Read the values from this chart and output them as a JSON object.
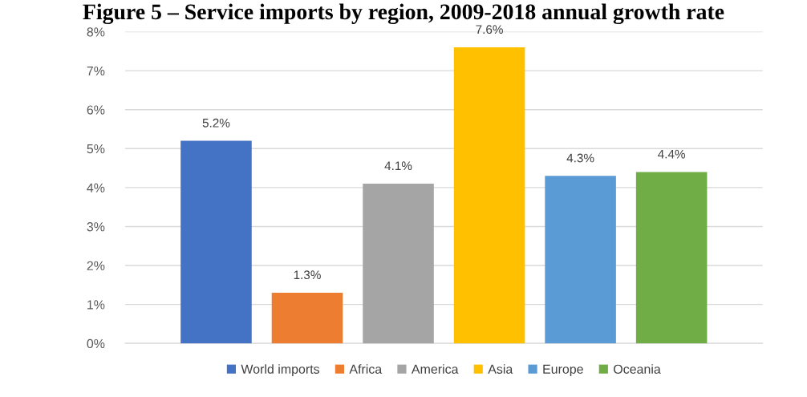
{
  "chart_data": {
    "type": "bar",
    "title": "Figure 5 – Service imports by region, 2009-2018 annual growth rate",
    "categories": [
      null,
      null,
      null,
      null,
      null,
      null
    ],
    "series": [
      {
        "name": "World imports",
        "color": "#4472c4",
        "values": [
          5.2,
          null,
          null,
          null,
          null,
          null
        ],
        "value_labels": [
          "5.2%",
          null,
          null,
          null,
          null,
          null
        ]
      },
      {
        "name": "Africa",
        "color": "#ed7d31",
        "values": [
          null,
          1.3,
          null,
          null,
          null,
          null
        ],
        "value_labels": [
          null,
          "1.3%",
          null,
          null,
          null,
          null
        ]
      },
      {
        "name": "America",
        "color": "#a5a5a5",
        "values": [
          null,
          null,
          4.1,
          null,
          null,
          null
        ],
        "value_labels": [
          null,
          null,
          "4.1%",
          null,
          null,
          null
        ]
      },
      {
        "name": "Asia",
        "color": "#ffc000",
        "values": [
          null,
          null,
          null,
          7.6,
          null,
          null
        ],
        "value_labels": [
          null,
          null,
          null,
          "7.6%",
          null,
          null
        ]
      },
      {
        "name": "Europe",
        "color": "#5b9bd5",
        "values": [
          null,
          null,
          null,
          null,
          4.3,
          null
        ],
        "value_labels": [
          null,
          null,
          null,
          null,
          "4.3%",
          null
        ]
      },
      {
        "name": "Oceania",
        "color": "#70ad47",
        "values": [
          null,
          null,
          null,
          null,
          null,
          4.4
        ],
        "value_labels": [
          null,
          null,
          null,
          null,
          null,
          "4.4%"
        ]
      }
    ],
    "ylim": [
      0,
      8
    ],
    "yticks": [
      {
        "value": 0,
        "label": "0%"
      },
      {
        "value": 1,
        "label": "1%"
      },
      {
        "value": 2,
        "label": "2%"
      },
      {
        "value": 3,
        "label": "3%"
      },
      {
        "value": 4,
        "label": "4%"
      },
      {
        "value": 5,
        "label": "5%"
      },
      {
        "value": 6,
        "label": "6%"
      },
      {
        "value": 7,
        "label": "7%"
      },
      {
        "value": 8,
        "label": "8%"
      }
    ],
    "grid": "y",
    "legend": "bottom"
  }
}
